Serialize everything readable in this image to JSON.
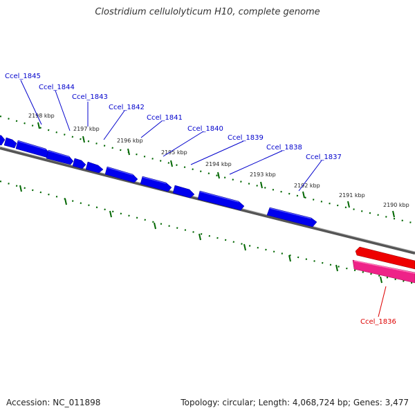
{
  "title": "Clostridium cellulolyticum H10, complete genome",
  "accession": "Accession: NC_011898",
  "topology": "Topology: circular; Length: 4,068,724 bp; Genes: 3,477",
  "colors": {
    "forward_gene": "#0000ee",
    "reverse_gene": "#ee0000",
    "reverse_gene_alt": "#ee2288",
    "backbone": "#777777",
    "tick": "#006600",
    "forward_label": "#0000cc",
    "reverse_label": "#dd0000"
  },
  "ruler": {
    "kbp_labels": [
      "2198 kbp",
      "2197 kbp",
      "2196 kbp",
      "2195 kbp",
      "2194 kbp",
      "2193 kbp",
      "2192 kbp",
      "2191 kbp",
      "2190 kbp"
    ]
  },
  "genes": {
    "forward": [
      "Ccel_1845",
      "Ccel_1844",
      "Ccel_1843",
      "Ccel_1842",
      "Ccel_1841",
      "Ccel_1840",
      "Ccel_1839",
      "Ccel_1838",
      "Ccel_1837"
    ],
    "reverse": [
      "Ccel_1836"
    ]
  }
}
